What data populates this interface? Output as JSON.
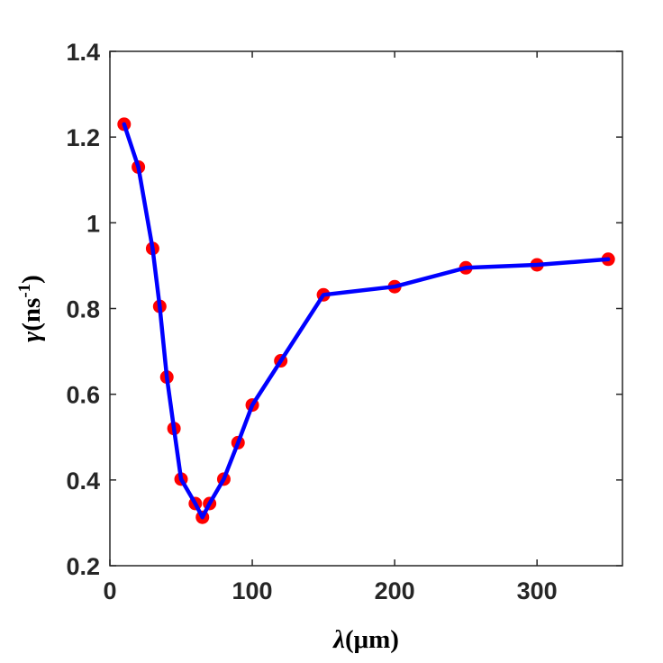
{
  "chart_data": {
    "type": "line",
    "title": "",
    "xlabel": "λ(μm)",
    "xlabel_parts": {
      "symbol": "λ",
      "unit": "(μm)"
    },
    "ylabel": "γ(ns-1)",
    "ylabel_parts": {
      "symbol": "γ",
      "unit_open": "(ns",
      "superscript": "-1",
      "unit_close": ")"
    },
    "xlim": [
      0,
      360
    ],
    "ylim": [
      0.2,
      1.4
    ],
    "xticks": [
      0,
      100,
      200,
      300
    ],
    "xtick_labels": [
      "0",
      "100",
      "200",
      "300"
    ],
    "yticks": [
      0.2,
      0.4,
      0.6,
      0.8,
      1.0,
      1.2,
      1.4
    ],
    "ytick_labels": [
      "0.2",
      "0.4",
      "0.6",
      "0.8",
      "1",
      "1.2",
      "1.4"
    ],
    "grid": false,
    "box": true,
    "series": [
      {
        "style": "line-with-markers",
        "line_color": "#0000ff",
        "marker_color": "#ff0000",
        "x": [
          10,
          20,
          30,
          35,
          40,
          45,
          50,
          60,
          65,
          70,
          80,
          90,
          100,
          120,
          150,
          200,
          250,
          300,
          350
        ],
        "y": [
          1.23,
          1.13,
          0.94,
          0.805,
          0.64,
          0.52,
          0.402,
          0.345,
          0.313,
          0.345,
          0.402,
          0.487,
          0.575,
          0.678,
          0.832,
          0.851,
          0.895,
          0.902,
          0.915
        ]
      }
    ]
  }
}
